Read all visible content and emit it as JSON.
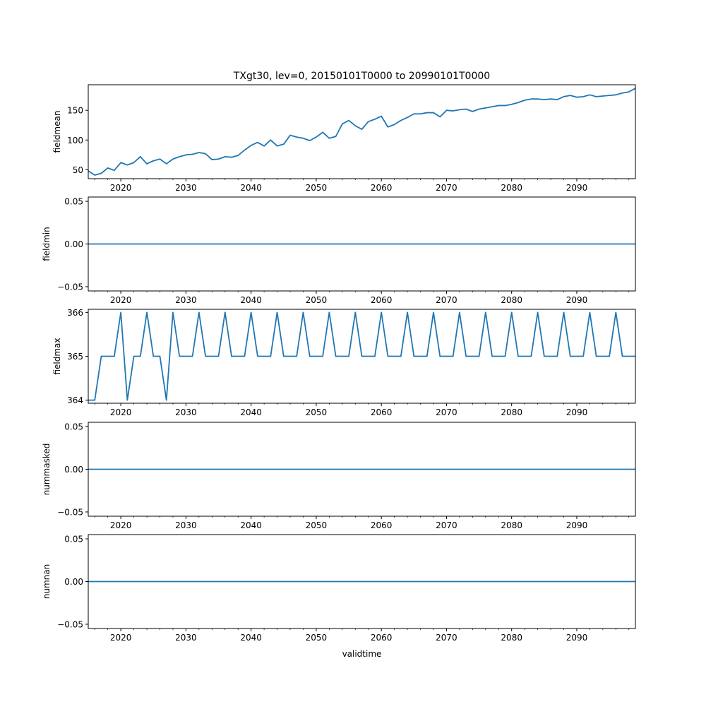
{
  "figure": {
    "title": "TXgt30, lev=0, 20150101T0000 to 20990101T0000",
    "xlabel": "validtime"
  },
  "chart_data": [
    {
      "type": "line",
      "ylabel": "fieldmean",
      "xlim": [
        2015,
        2099
      ],
      "ylim": [
        35,
        193
      ],
      "yticks": [
        50,
        100,
        150
      ],
      "xticks": [
        2020,
        2030,
        2040,
        2050,
        2060,
        2070,
        2080,
        2090
      ],
      "line_color": "#1f77b4",
      "x": [
        2015,
        2016,
        2017,
        2018,
        2019,
        2020,
        2021,
        2022,
        2023,
        2024,
        2025,
        2026,
        2027,
        2028,
        2029,
        2030,
        2031,
        2032,
        2033,
        2034,
        2035,
        2036,
        2037,
        2038,
        2039,
        2040,
        2041,
        2042,
        2043,
        2044,
        2045,
        2046,
        2047,
        2048,
        2049,
        2050,
        2051,
        2052,
        2053,
        2054,
        2055,
        2056,
        2057,
        2058,
        2059,
        2060,
        2061,
        2062,
        2063,
        2064,
        2065,
        2066,
        2067,
        2068,
        2069,
        2070,
        2071,
        2072,
        2073,
        2074,
        2075,
        2076,
        2077,
        2078,
        2079,
        2080,
        2081,
        2082,
        2083,
        2084,
        2085,
        2086,
        2087,
        2088,
        2089,
        2090,
        2091,
        2092,
        2093,
        2094,
        2095,
        2096,
        2097,
        2098,
        2099
      ],
      "y": [
        48,
        41,
        44,
        53,
        49,
        62,
        58,
        62,
        72,
        60,
        65,
        68,
        60,
        68,
        72,
        75,
        76,
        79,
        77,
        67,
        68,
        72,
        71,
        74,
        83,
        91,
        96,
        90,
        100,
        90,
        93,
        108,
        105,
        103,
        99,
        105,
        113,
        103,
        106,
        127,
        133,
        124,
        118,
        131,
        135,
        140,
        122,
        126,
        133,
        138,
        144,
        144,
        146,
        146,
        139,
        150,
        149,
        151,
        152,
        148,
        152,
        154,
        156,
        158,
        158,
        160,
        163,
        167,
        169,
        169,
        168,
        169,
        168,
        173,
        175,
        172,
        173,
        176,
        173,
        174,
        175,
        176,
        179,
        181,
        187
      ]
    },
    {
      "type": "line",
      "ylabel": "fieldmin",
      "xlim": [
        2015,
        2099
      ],
      "ylim": [
        -0.055,
        0.055
      ],
      "yticks": [
        -0.05,
        0.0,
        0.05
      ],
      "ytick_labels": [
        "−0.05",
        "0.00",
        "0.05"
      ],
      "xticks": [
        2020,
        2030,
        2040,
        2050,
        2060,
        2070,
        2080,
        2090
      ],
      "line_color": "#1f77b4",
      "x": [
        2015,
        2099
      ],
      "y": [
        0,
        0
      ]
    },
    {
      "type": "line",
      "ylabel": "fieldmax",
      "xlim": [
        2015,
        2099
      ],
      "ylim": [
        363.93,
        366.07
      ],
      "yticks": [
        364,
        365,
        366
      ],
      "xticks": [
        2020,
        2030,
        2040,
        2050,
        2060,
        2070,
        2080,
        2090
      ],
      "line_color": "#1f77b4",
      "x": [
        2015,
        2016,
        2017,
        2018,
        2019,
        2020,
        2021,
        2022,
        2023,
        2024,
        2025,
        2026,
        2027,
        2028,
        2029,
        2030,
        2031,
        2032,
        2033,
        2034,
        2035,
        2036,
        2037,
        2038,
        2039,
        2040,
        2041,
        2042,
        2043,
        2044,
        2045,
        2046,
        2047,
        2048,
        2049,
        2050,
        2051,
        2052,
        2053,
        2054,
        2055,
        2056,
        2057,
        2058,
        2059,
        2060,
        2061,
        2062,
        2063,
        2064,
        2065,
        2066,
        2067,
        2068,
        2069,
        2070,
        2071,
        2072,
        2073,
        2074,
        2075,
        2076,
        2077,
        2078,
        2079,
        2080,
        2081,
        2082,
        2083,
        2084,
        2085,
        2086,
        2087,
        2088,
        2089,
        2090,
        2091,
        2092,
        2093,
        2094,
        2095,
        2096,
        2097,
        2098,
        2099
      ],
      "y": [
        364,
        364,
        365,
        365,
        365,
        366,
        364,
        365,
        365,
        366,
        365,
        365,
        364,
        366,
        365,
        365,
        365,
        366,
        365,
        365,
        365,
        366,
        365,
        365,
        365,
        366,
        365,
        365,
        365,
        366,
        365,
        365,
        365,
        366,
        365,
        365,
        365,
        366,
        365,
        365,
        365,
        366,
        365,
        365,
        365,
        366,
        365,
        365,
        365,
        366,
        365,
        365,
        365,
        366,
        365,
        365,
        365,
        366,
        365,
        365,
        365,
        366,
        365,
        365,
        365,
        366,
        365,
        365,
        365,
        366,
        365,
        365,
        365,
        366,
        365,
        365,
        365,
        366,
        365,
        365,
        365,
        366,
        365,
        365,
        365
      ]
    },
    {
      "type": "line",
      "ylabel": "nummasked",
      "xlim": [
        2015,
        2099
      ],
      "ylim": [
        -0.055,
        0.055
      ],
      "yticks": [
        -0.05,
        0.0,
        0.05
      ],
      "ytick_labels": [
        "−0.05",
        "0.00",
        "0.05"
      ],
      "xticks": [
        2020,
        2030,
        2040,
        2050,
        2060,
        2070,
        2080,
        2090
      ],
      "line_color": "#1f77b4",
      "x": [
        2015,
        2099
      ],
      "y": [
        0,
        0
      ]
    },
    {
      "type": "line",
      "ylabel": "numnan",
      "xlim": [
        2015,
        2099
      ],
      "ylim": [
        -0.055,
        0.055
      ],
      "yticks": [
        -0.05,
        0.0,
        0.05
      ],
      "ytick_labels": [
        "−0.05",
        "0.00",
        "0.05"
      ],
      "xticks": [
        2020,
        2030,
        2040,
        2050,
        2060,
        2070,
        2080,
        2090
      ],
      "line_color": "#1f77b4",
      "x": [
        2015,
        2099
      ],
      "y": [
        0,
        0
      ]
    }
  ]
}
